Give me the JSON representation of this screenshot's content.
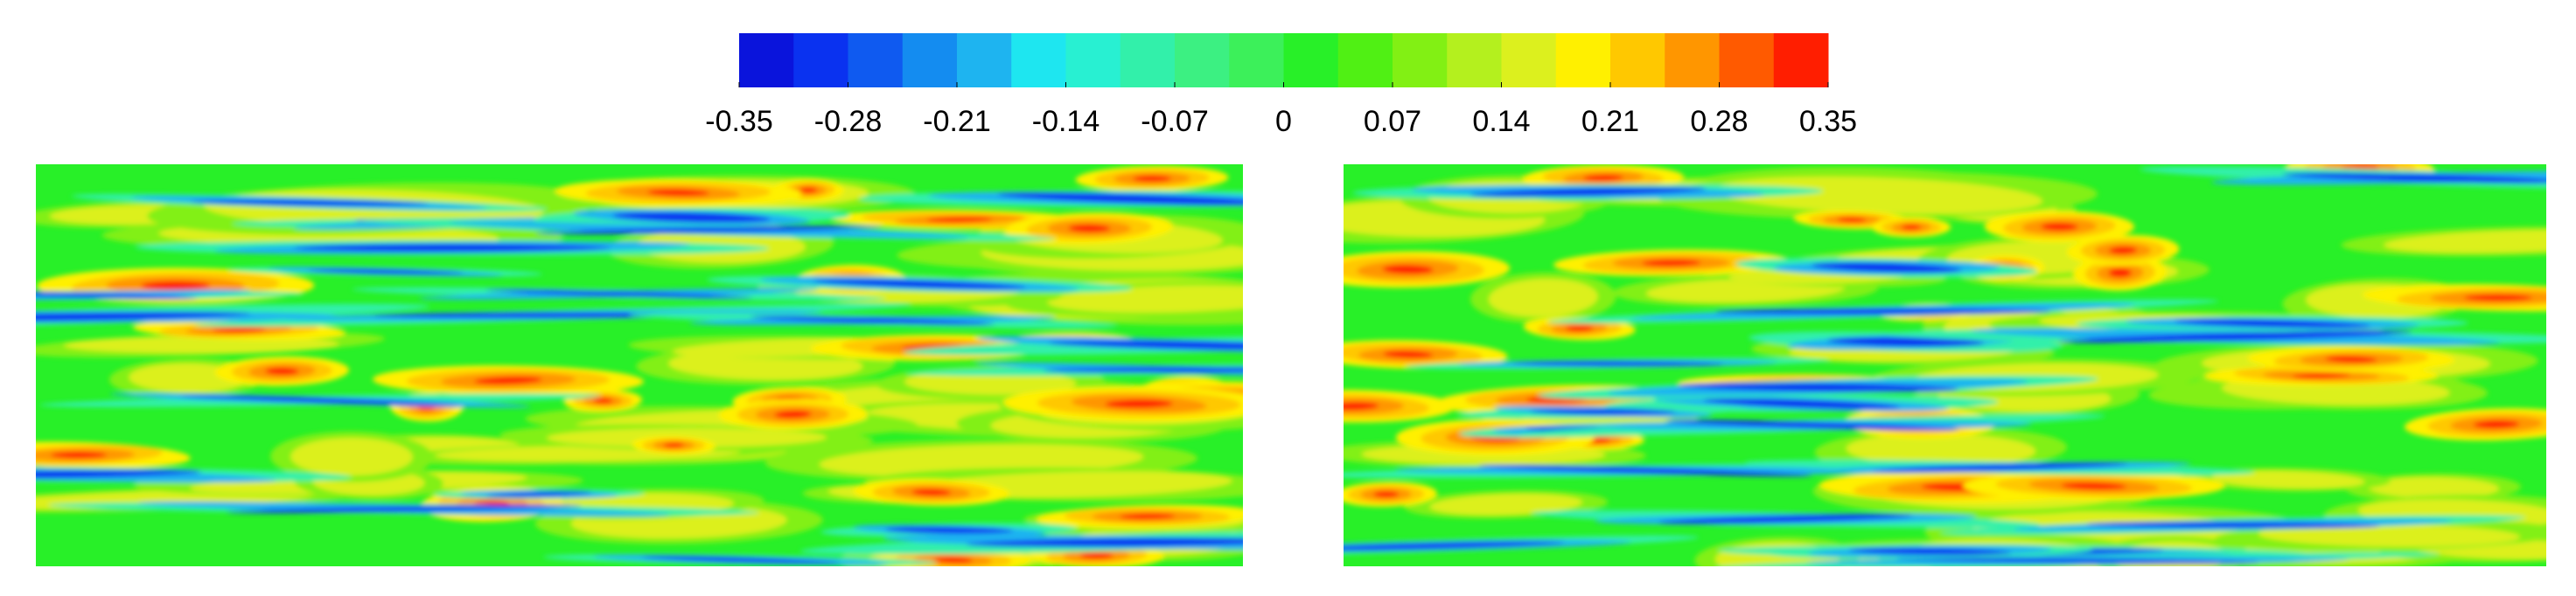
{
  "chart_data": {
    "type": "contour",
    "colorbar": {
      "lim": [
        -0.35,
        0.35
      ],
      "ticks": [
        -0.35,
        -0.28,
        -0.21,
        -0.14,
        -0.07,
        0,
        0.07,
        0.14,
        0.21,
        0.28,
        0.35
      ],
      "colors": [
        "#0a14dc",
        "#0a32f0",
        "#0f5af0",
        "#148cf0",
        "#1eb4f0",
        "#1ee6f0",
        "#28f0d2",
        "#32f0aa",
        "#3cf082",
        "#3cf05a",
        "#28f028",
        "#50f014",
        "#82f014",
        "#b4f01e",
        "#dcf01e",
        "#fff000",
        "#ffc800",
        "#ff9600",
        "#ff5a00",
        "#ff1e00"
      ]
    }
  }
}
